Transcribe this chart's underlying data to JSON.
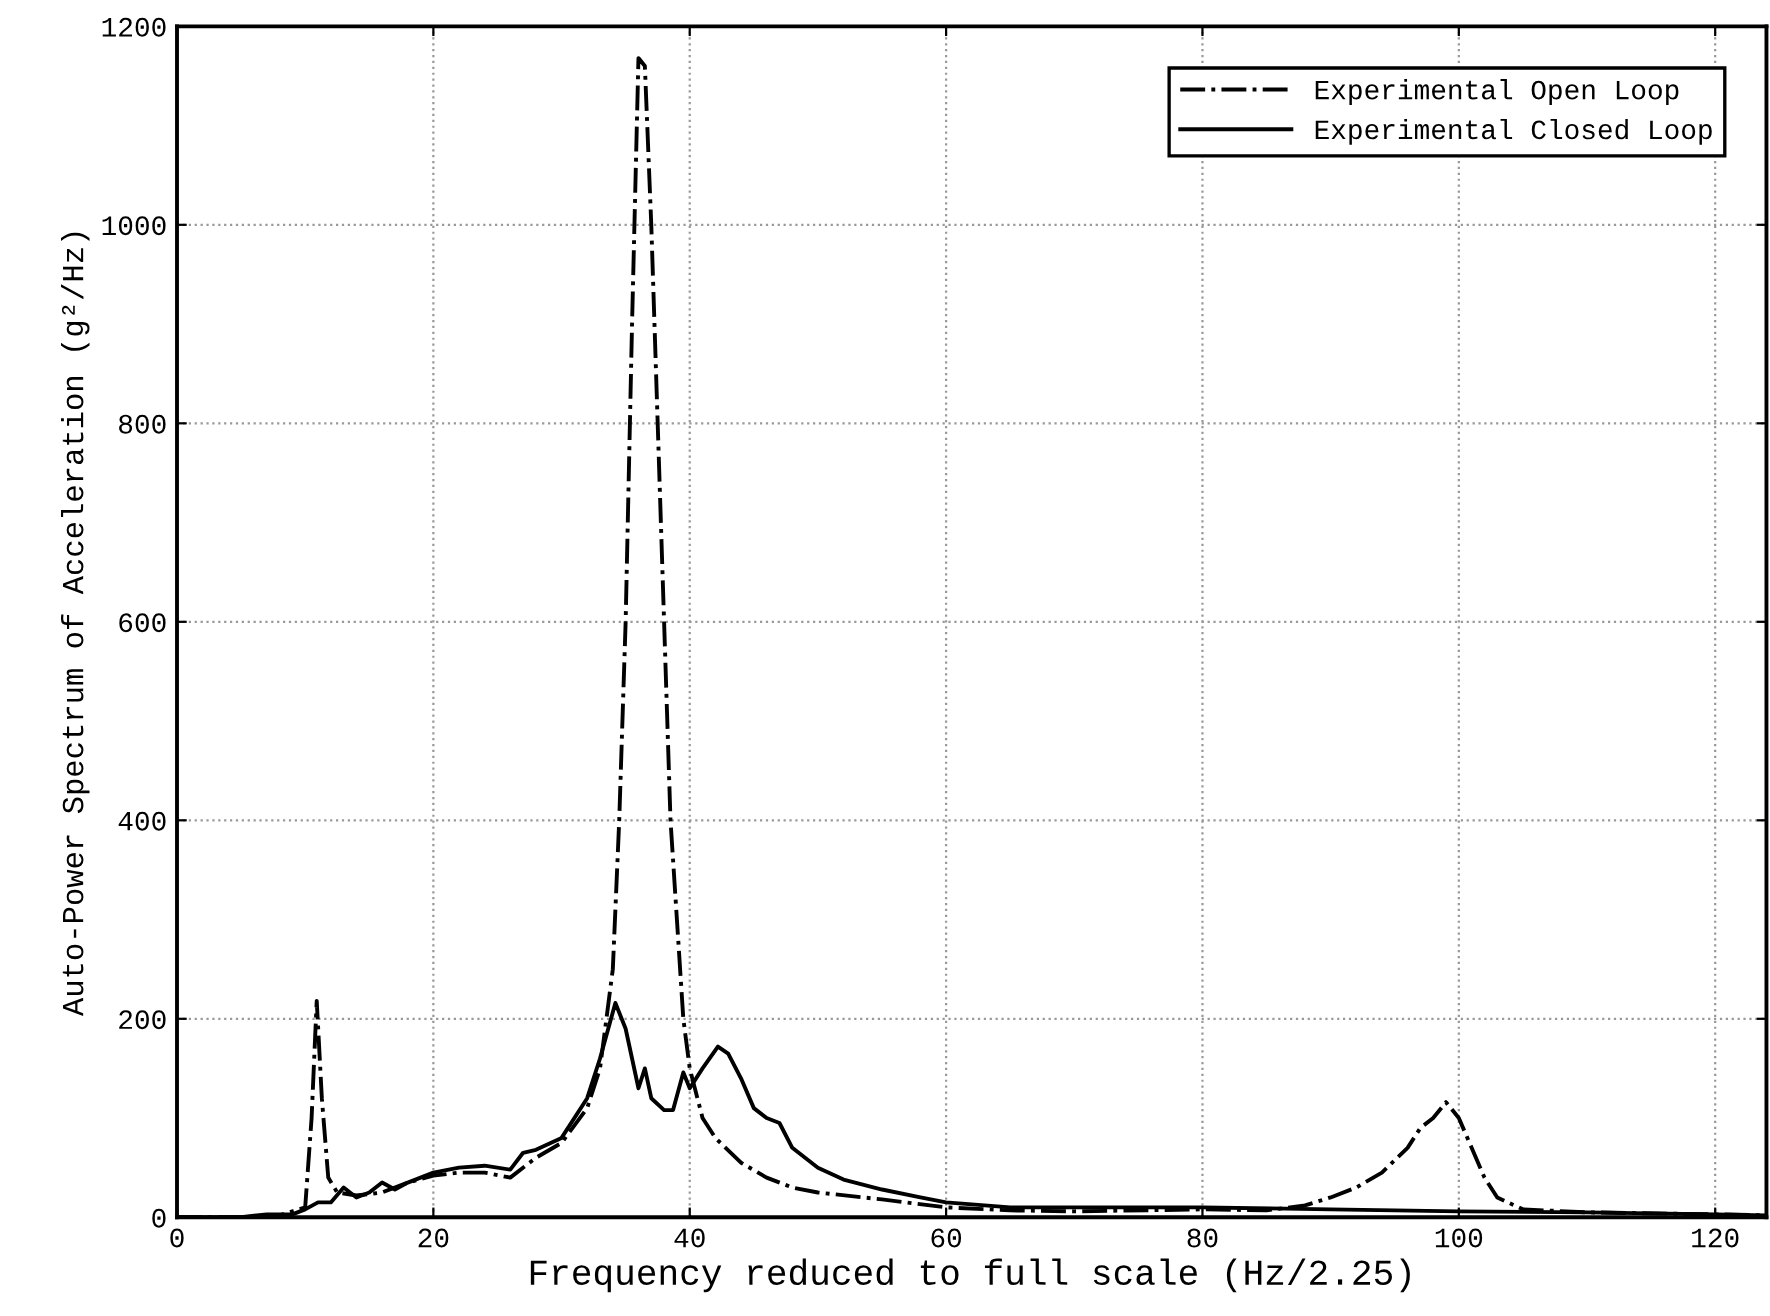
{
  "chart_data": {
    "type": "line",
    "xlabel": "Frequency reduced to full scale (Hz/2.25)",
    "ylabel": "Auto-Power Spectrum of Acceleration (g²/Hz)",
    "xlim": [
      0,
      124
    ],
    "ylim": [
      0,
      1200
    ],
    "xticks": [
      0,
      20,
      40,
      60,
      80,
      100,
      120
    ],
    "yticks": [
      0,
      200,
      400,
      600,
      800,
      1000,
      1200
    ],
    "grid": true,
    "legend": "top right",
    "marker": "none",
    "series": [
      {
        "name": "Experimental Open Loop",
        "color": "#000000",
        "line_style": "dashdot",
        "x": [
          0,
          5,
          8,
          10,
          10.5,
          10.9,
          11.3,
          11.8,
          12.5,
          14,
          16,
          18,
          20,
          22,
          24,
          26,
          28,
          30,
          32,
          33,
          34,
          34.5,
          35,
          35.5,
          36,
          36.5,
          37,
          37.5,
          38,
          38.5,
          39,
          39.5,
          40,
          41,
          42,
          44,
          46,
          48,
          50,
          55,
          60,
          65,
          70,
          80,
          85,
          88,
          90,
          92,
          94,
          96,
          97,
          98,
          99,
          100,
          101,
          102,
          103,
          105,
          110,
          120,
          124
        ],
        "values": [
          0,
          0,
          2,
          10,
          100,
          218,
          120,
          40,
          25,
          22,
          25,
          35,
          42,
          45,
          45,
          40,
          60,
          75,
          110,
          150,
          250,
          400,
          600,
          900,
          1168,
          1160,
          1000,
          800,
          600,
          400,
          300,
          200,
          150,
          100,
          80,
          55,
          40,
          30,
          25,
          18,
          10,
          7,
          6,
          8,
          7,
          12,
          20,
          30,
          45,
          70,
          90,
          100,
          116,
          100,
          70,
          40,
          20,
          8,
          5,
          3,
          2
        ]
      },
      {
        "name": "Experimental Closed Loop",
        "color": "#000000",
        "line_style": "solid",
        "x": [
          0,
          5,
          7,
          9,
          10,
          11,
          12,
          13,
          14,
          15,
          16,
          17,
          18,
          20,
          22,
          24,
          26,
          27,
          28,
          30,
          32,
          33,
          34.2,
          35,
          36,
          36.5,
          37,
          38,
          38.7,
          39.5,
          40,
          41,
          42.2,
          43,
          44,
          45,
          46,
          47,
          48,
          50,
          52,
          55,
          58,
          60,
          65,
          70,
          80,
          90,
          100,
          110,
          120,
          124
        ],
        "values": [
          0,
          0,
          3,
          3,
          8,
          15,
          15,
          30,
          20,
          25,
          35,
          28,
          35,
          45,
          50,
          52,
          48,
          65,
          68,
          80,
          120,
          160,
          216,
          190,
          130,
          150,
          120,
          108,
          108,
          146,
          130,
          150,
          172,
          165,
          140,
          110,
          100,
          95,
          70,
          50,
          38,
          28,
          20,
          15,
          10,
          10,
          10,
          8,
          6,
          5,
          3,
          2
        ]
      }
    ]
  }
}
